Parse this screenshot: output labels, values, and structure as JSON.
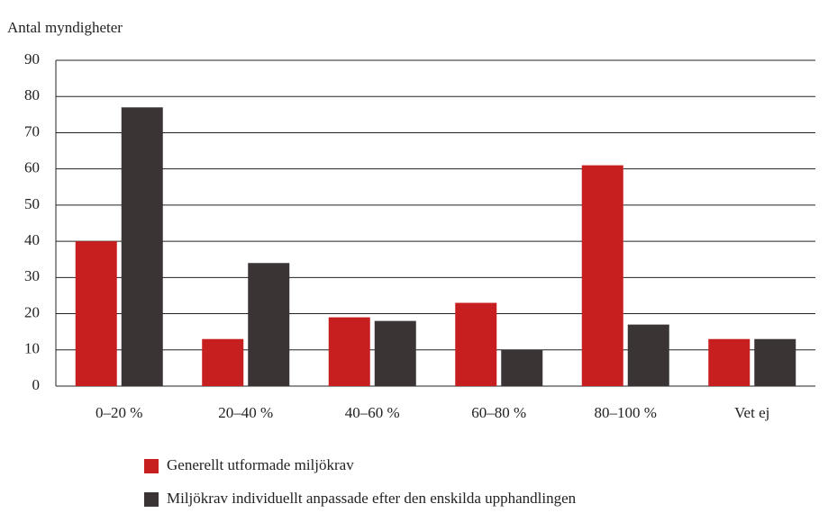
{
  "chart_data": {
    "type": "bar",
    "y_label": "Antal myndigheter",
    "categories": [
      "0–20 %",
      "20–40 %",
      "40–60 %",
      "60–80 %",
      "80–100 %",
      "Vet ej"
    ],
    "series": [
      {
        "name": "Generellt utformade miljökrav",
        "color": "#c71f20",
        "values": [
          40,
          13,
          19,
          23,
          61,
          13
        ]
      },
      {
        "name": "Miljökrav individuellt anpassade efter den enskilda upphandlingen",
        "color": "#3a3435",
        "values": [
          77,
          34,
          18,
          10,
          17,
          13
        ]
      }
    ],
    "ylim": [
      0,
      90
    ],
    "yticks": [
      0,
      10,
      20,
      30,
      40,
      50,
      60,
      70,
      80,
      90
    ],
    "grid": true
  }
}
